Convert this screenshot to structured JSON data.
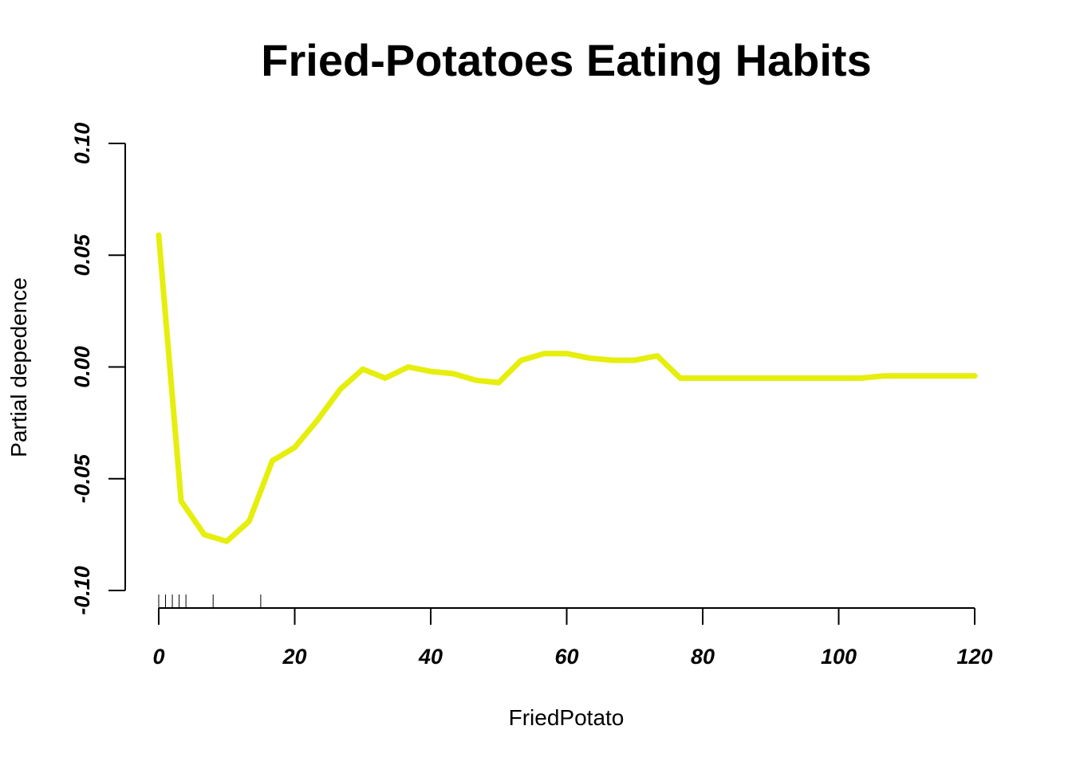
{
  "chart_data": {
    "type": "line",
    "title": "Fried-Potatoes Eating Habits",
    "xlabel": "FriedPotato",
    "ylabel": "Partial depedence",
    "xlim": [
      0,
      120
    ],
    "ylim": [
      -0.1,
      0.1
    ],
    "x_ticks": [
      "0",
      "20",
      "40",
      "60",
      "80",
      "100",
      "120"
    ],
    "y_ticks": [
      "-0.10",
      "-0.05",
      "0.00",
      "0.05",
      "0.10"
    ],
    "grid": false,
    "line_color": "#e6ee0c",
    "series": [
      {
        "x": [
          0,
          3.3,
          6.7,
          10,
          13.3,
          16.7,
          20,
          23.3,
          26.7,
          30,
          33.3,
          36.7,
          40,
          43.3,
          46.7,
          50,
          53.3,
          56.7,
          60,
          63.3,
          66.7,
          70,
          73.3,
          76.7,
          80,
          83.3,
          86.7,
          90,
          93.3,
          96.7,
          100,
          103.3,
          106.7,
          110,
          113.3,
          116.7,
          120
        ],
        "y": [
          0.059,
          -0.06,
          -0.075,
          -0.078,
          -0.069,
          -0.042,
          -0.036,
          -0.024,
          -0.01,
          -0.001,
          -0.005,
          0.0,
          -0.002,
          -0.003,
          -0.006,
          -0.007,
          0.003,
          0.006,
          0.006,
          0.004,
          0.003,
          0.003,
          0.005,
          -0.005,
          -0.005,
          -0.005,
          -0.005,
          -0.005,
          -0.005,
          -0.005,
          -0.005,
          -0.005,
          -0.004,
          -0.004,
          -0.004,
          -0.004,
          -0.004
        ]
      }
    ],
    "rug": [
      0,
      1,
      2,
      3,
      4,
      8,
      15
    ]
  }
}
